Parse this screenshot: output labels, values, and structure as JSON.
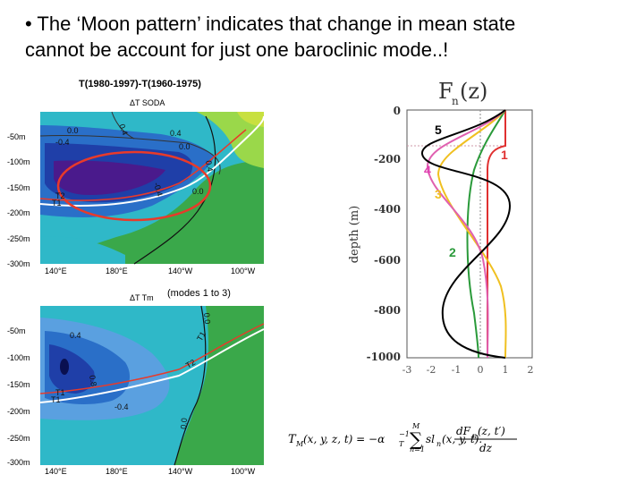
{
  "slide": {
    "title": "• The ‘Moon pattern’ indicates that change in mean state\ncannot be account for just one baroclinic mode..!",
    "subtitle": "T(1980-1997)-T(1960-1975)",
    "modes_caption": "(modes 1 to 3)"
  },
  "panel_top": {
    "title": "ΔT SODA",
    "y_ticks": [
      "-50m",
      "-100m",
      "-150m",
      "-200m",
      "-250m",
      "-300m"
    ],
    "x_ticks": [
      "140°E",
      "180°E",
      "140°W",
      "100°W"
    ],
    "contour_labels": [
      "0.0",
      "0.4",
      "0.4",
      "0.0",
      "-0.4",
      "0.4",
      "0.0",
      "-0.4",
      "0.8",
      "0.0"
    ],
    "line_labels": [
      "T1",
      "T2"
    ]
  },
  "panel_bottom": {
    "title": "ΔT Tm",
    "y_ticks": [
      "-50m",
      "-100m",
      "-150m",
      "-200m",
      "-250m",
      "-300m"
    ],
    "x_ticks": [
      "140°E",
      "180°E",
      "140°W",
      "100°W"
    ],
    "contour_labels": [
      "0.4",
      "0.8",
      "-0.4",
      "0.0",
      "0.0",
      "T1",
      "T2"
    ],
    "line_labels": [
      "T1",
      "T1"
    ]
  },
  "modes_plot": {
    "title_main": "F",
    "title_sub": "n",
    "title_tail": "(z)",
    "ylabel": "depth (m)",
    "y_ticks": [
      "0",
      "-200",
      "-400",
      "-600",
      "-800",
      "-1000"
    ],
    "x_ticks": [
      "-3",
      "-2",
      "-1",
      "0",
      "1",
      "2"
    ],
    "mode_labels": [
      {
        "text": "5",
        "color": "#000000"
      },
      {
        "text": "1",
        "color": "#e03030"
      },
      {
        "text": "4",
        "color": "#e040b0"
      },
      {
        "text": "3",
        "color": "#f0c020"
      },
      {
        "text": "2",
        "color": "#2a9a3a"
      }
    ]
  },
  "equation": {
    "lhs": "T",
    "lhs_sub": "M",
    "lhs_args": "(x, y, z, t) = −α",
    "alpha_sub": "T",
    "alpha_sup": "−1",
    "sum_top": "M",
    "sum_bottom": "n=1",
    "term": "sl",
    "term_sub": "n",
    "term_args": "(x, y, t).",
    "numerator": "dF",
    "num_sub": "n",
    "num_args": "(z, t′)",
    "denominator": "dz"
  },
  "colors": {
    "deep_purple": "#4a1a8c",
    "blue": "#1f3fa8",
    "cyan": "#2fb8c8",
    "green": "#3aa84a",
    "highlight": "#e83a2a"
  }
}
